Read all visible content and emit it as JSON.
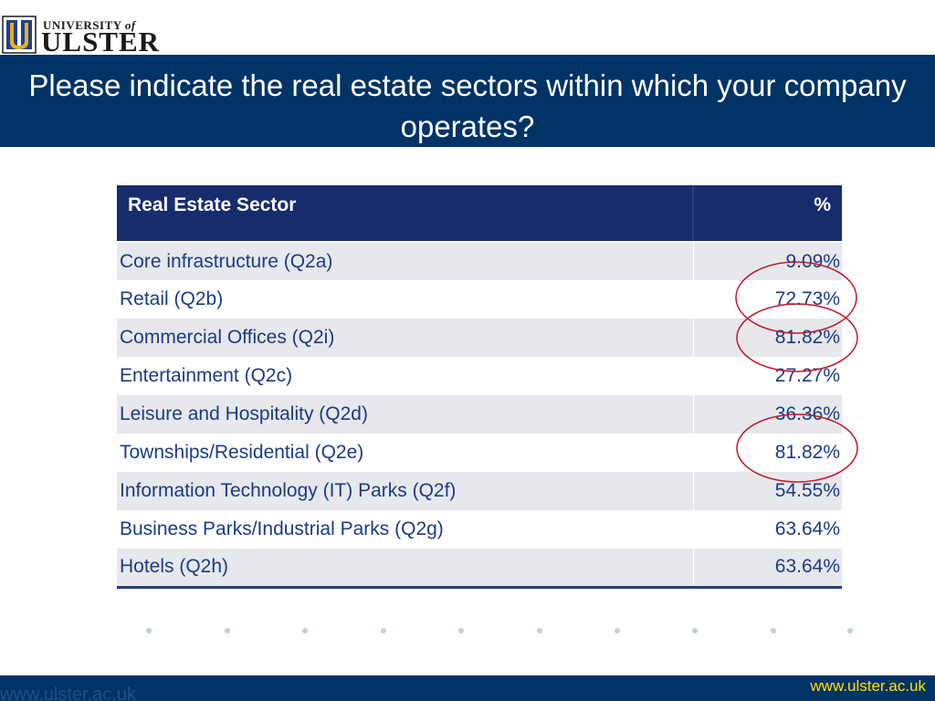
{
  "logo": {
    "university_of": "UNIVERSITY",
    "of": "of",
    "name": "ULSTER"
  },
  "slide": {
    "title": "Please indicate the real estate sectors within which your company operates?"
  },
  "table": {
    "headers": [
      "Real Estate Sector",
      "%"
    ],
    "rows": [
      {
        "sector": "Core infrastructure (Q2a)",
        "percent": "9.09%"
      },
      {
        "sector": "Retail (Q2b)",
        "percent": "72.73%"
      },
      {
        "sector": "Commercial Offices (Q2i)",
        "percent": "81.82%"
      },
      {
        "sector": "Entertainment (Q2c)",
        "percent": "27.27%"
      },
      {
        "sector": "Leisure and Hospitality (Q2d)",
        "percent": "36.36%"
      },
      {
        "sector": "Townships/Residential (Q2e)",
        "percent": "81.82%"
      },
      {
        "sector": "Information Technology (IT) Parks (Q2f)",
        "percent": "54.55%"
      },
      {
        "sector": "Business Parks/Industrial Parks (Q2g)",
        "percent": "63.64%"
      },
      {
        "sector": "Hotels (Q2h)",
        "percent": "63.64%"
      }
    ],
    "highlighted_rows": [
      "Retail (Q2b)",
      "Commercial Offices (Q2i)",
      "Townships/Residential (Q2e)"
    ]
  },
  "footer": {
    "ghost_url": "www.ulster.ac.uk",
    "url": "www.ulster.ac.uk"
  },
  "colors": {
    "title_band": "#003366",
    "table_header": "#172c6c",
    "row_shade": "#e7e8ec",
    "text_blue": "#1a3b85",
    "footer_url": "#ffe100",
    "annotation_circle": "#c0192b"
  }
}
